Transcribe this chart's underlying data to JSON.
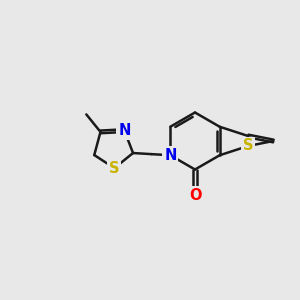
{
  "background_color": "#e8e8e8",
  "bond_color": "#1a1a1a",
  "atom_colors": {
    "S": "#c8b400",
    "N": "#0000ee",
    "O": "#ff0000",
    "C": "#1a1a1a"
  },
  "bond_width": 1.8,
  "font_size": 10.5,
  "figsize": [
    3.0,
    3.0
  ],
  "dpi": 100
}
